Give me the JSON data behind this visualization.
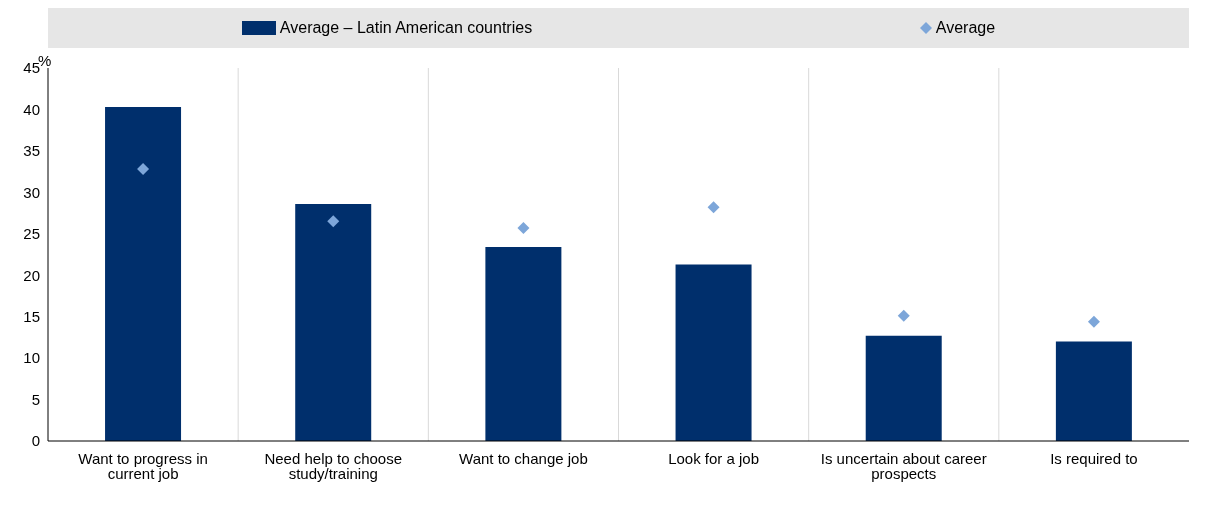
{
  "chart_data": {
    "type": "bar",
    "ylabel": "%",
    "categories": [
      "Want to progress in current job",
      "Need help to choose study/training",
      "Want to change job",
      "Look for a job",
      "Is uncertain about career prospects",
      "Is required to"
    ],
    "series": [
      {
        "name": "Average – Latin American countries",
        "type": "bar",
        "color": "#002f6c",
        "values": [
          40.3,
          28.6,
          23.4,
          21.3,
          12.7,
          12.0
        ]
      },
      {
        "name": "Average",
        "type": "scatter",
        "color": "#7da6d9",
        "values": [
          32.8,
          26.5,
          25.7,
          28.2,
          15.1,
          14.4
        ]
      }
    ],
    "ylim": [
      0,
      45
    ],
    "yticks": [
      0,
      5,
      10,
      15,
      20,
      25,
      30,
      35,
      40,
      45
    ],
    "grid": "x",
    "legend": "top",
    "marker": "diamond"
  }
}
